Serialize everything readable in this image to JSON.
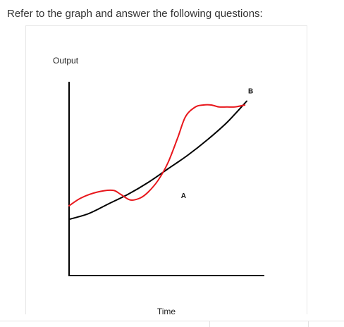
{
  "question": {
    "text": "Refer to the graph and answer the following questions:"
  },
  "chart_data": {
    "type": "line",
    "title": "",
    "xlabel": "Time",
    "ylabel": "Output",
    "xlim": [
      0,
      100
    ],
    "ylim": [
      0,
      100
    ],
    "grid": false,
    "legend": "none",
    "series": [
      {
        "color": "#000000",
        "x": [
          0,
          10,
          20,
          30,
          40,
          50,
          60,
          70,
          80,
          90
        ],
        "y": [
          29,
          32,
          37,
          42,
          48,
          55,
          62,
          70,
          79,
          90
        ]
      },
      {
        "color": "#e8171c",
        "x": [
          0,
          6,
          14,
          22,
          26,
          31,
          36,
          40,
          45,
          50,
          55,
          59,
          64,
          68,
          72,
          76,
          80,
          84,
          89
        ],
        "y": [
          36,
          40,
          43,
          44,
          42,
          39,
          40,
          43,
          49,
          58,
          71,
          82,
          87,
          88,
          88,
          87,
          87,
          87,
          88
        ]
      }
    ],
    "annotations": [
      {
        "label": "A",
        "x": 58,
        "y": 40
      },
      {
        "label": "B",
        "x": 92,
        "y": 94
      }
    ],
    "colors": {
      "axes": "#000000",
      "trend": "#000000",
      "actual": "#e8171c"
    }
  }
}
